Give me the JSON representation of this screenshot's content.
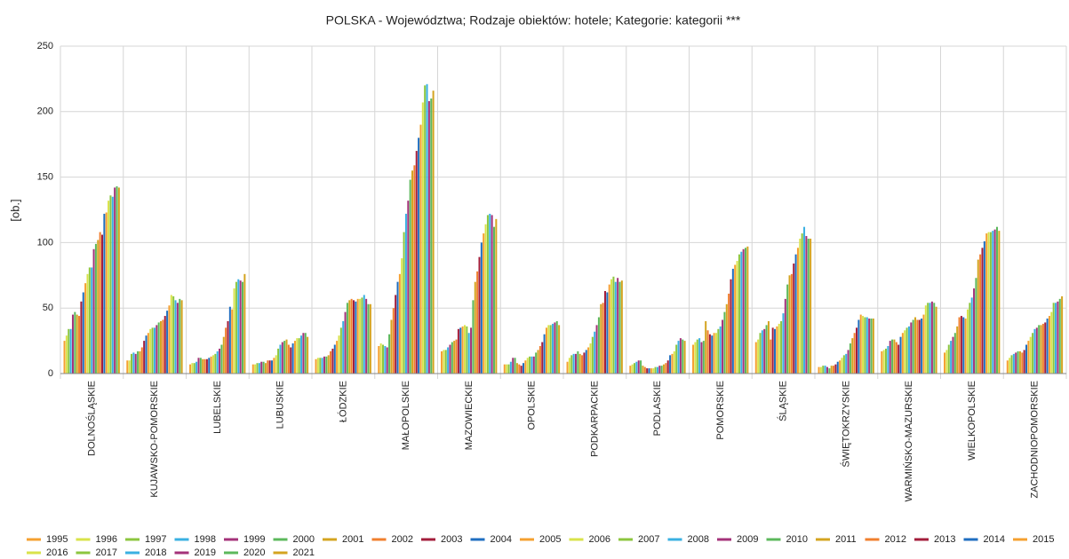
{
  "chart_data": {
    "type": "bar",
    "title": "POLSKA - Województwa; Rodzaje obiektów: hotele; Kategorie: kategorii ***",
    "y_label": "[ob.]",
    "categories": [
      "DOLNOŚLĄSKIE",
      "KUJAWSKO-POMORSKIE",
      "LUBELSKIE",
      "LUBUSKIE",
      "ŁÓDZKIE",
      "MAŁOPOLSKIE",
      "MAZOWIECKIE",
      "OPOLSKIE",
      "PODKARPACKIE",
      "PODLASKIE",
      "POMORSKIE",
      "ŚLĄSKIE",
      "ŚWIĘTOKRZYSKIE",
      "WARMIŃSKO-MAZURSKIE",
      "WIELKOPOLSKIE",
      "ZACHODNIOPOMORSKIE"
    ],
    "ylim": [
      0,
      250
    ],
    "yticks": [
      0,
      50,
      100,
      150,
      200,
      250
    ],
    "grid": true,
    "series": [
      {
        "name": "1995",
        "color": "#f5a030",
        "values": [
          25,
          10,
          7,
          7,
          11,
          21,
          17,
          7,
          9,
          6,
          22,
          24,
          5,
          17,
          16,
          10
        ]
      },
      {
        "name": "1996",
        "color": "#d9e34a",
        "values": [
          29,
          10,
          8,
          7,
          12,
          23,
          18,
          7,
          12,
          7,
          24,
          26,
          5,
          18,
          18,
          12
        ]
      },
      {
        "name": "1997",
        "color": "#8cc63f",
        "values": [
          34,
          15,
          8,
          8,
          12,
          22,
          18,
          7,
          14,
          8,
          26,
          31,
          6,
          19,
          22,
          14
        ]
      },
      {
        "name": "1998",
        "color": "#3ab0e2",
        "values": [
          34,
          16,
          9,
          8,
          12,
          21,
          20,
          9,
          15,
          9,
          27,
          33,
          6,
          21,
          25,
          15
        ]
      },
      {
        "name": "1999",
        "color": "#a4327a",
        "values": [
          45,
          15,
          12,
          9,
          13,
          20,
          22,
          12,
          15,
          10,
          24,
          34,
          5,
          25,
          28,
          16
        ]
      },
      {
        "name": "2000",
        "color": "#5cb85c",
        "values": [
          47,
          17,
          12,
          9,
          13,
          30,
          24,
          12,
          17,
          10,
          25,
          37,
          4,
          26,
          31,
          17
        ]
      },
      {
        "name": "2001",
        "color": "#d4a420",
        "values": [
          45,
          17,
          11,
          8,
          14,
          41,
          25,
          8,
          15,
          6,
          40,
          40,
          6,
          26,
          36,
          17
        ]
      },
      {
        "name": "2002",
        "color": "#f07f2e",
        "values": [
          44,
          20,
          11,
          10,
          17,
          50,
          26,
          7,
          14,
          5,
          33,
          26,
          6,
          24,
          43,
          16
        ]
      },
      {
        "name": "2003",
        "color": "#a31d3b",
        "values": [
          55,
          25,
          11,
          10,
          19,
          60,
          34,
          6,
          16,
          4,
          30,
          35,
          7,
          22,
          44,
          18
        ]
      },
      {
        "name": "2004",
        "color": "#1f6ec0",
        "values": [
          62,
          29,
          12,
          10,
          22,
          70,
          35,
          8,
          18,
          4,
          29,
          34,
          9,
          28,
          43,
          22
        ]
      },
      {
        "name": "2005",
        "color": "#f5a030",
        "values": [
          69,
          31,
          13,
          12,
          25,
          76,
          36,
          10,
          20,
          4,
          31,
          36,
          10,
          31,
          42,
          25
        ]
      },
      {
        "name": "2006",
        "color": "#d9e34a",
        "values": [
          76,
          34,
          14,
          14,
          29,
          88,
          37,
          12,
          23,
          4,
          31,
          38,
          12,
          33,
          49,
          28
        ]
      },
      {
        "name": "2007",
        "color": "#8cc63f",
        "values": [
          81,
          35,
          15,
          19,
          35,
          108,
          36,
          13,
          28,
          5,
          34,
          40,
          14,
          35,
          54,
          31
        ]
      },
      {
        "name": "2008",
        "color": "#3ab0e2",
        "values": [
          81,
          35,
          17,
          22,
          40,
          122,
          31,
          13,
          32,
          5,
          36,
          46,
          15,
          36,
          58,
          34
        ]
      },
      {
        "name": "2009",
        "color": "#a4327a",
        "values": [
          95,
          37,
          19,
          24,
          47,
          132,
          35,
          13,
          37,
          6,
          41,
          57,
          18,
          39,
          65,
          35
        ]
      },
      {
        "name": "2010",
        "color": "#5cb85c",
        "values": [
          99,
          39,
          22,
          25,
          54,
          148,
          56,
          16,
          43,
          6,
          47,
          68,
          23,
          41,
          73,
          37
        ]
      },
      {
        "name": "2011",
        "color": "#d4a420",
        "values": [
          102,
          40,
          28,
          26,
          56,
          155,
          70,
          18,
          53,
          7,
          53,
          75,
          27,
          43,
          87,
          37
        ]
      },
      {
        "name": "2012",
        "color": "#f07f2e",
        "values": [
          108,
          41,
          35,
          22,
          57,
          159,
          78,
          21,
          54,
          8,
          61,
          76,
          31,
          41,
          91,
          38
        ]
      },
      {
        "name": "2013",
        "color": "#a31d3b",
        "values": [
          106,
          44,
          40,
          20,
          56,
          170,
          89,
          24,
          63,
          10,
          72,
          84,
          35,
          41,
          96,
          39
        ]
      },
      {
        "name": "2014",
        "color": "#1f6ec0",
        "values": [
          122,
          48,
          51,
          23,
          55,
          180,
          100,
          30,
          62,
          14,
          80,
          91,
          41,
          42,
          101,
          42
        ]
      },
      {
        "name": "2015",
        "color": "#f5a030",
        "values": [
          123,
          52,
          49,
          25,
          57,
          190,
          107,
          35,
          68,
          15,
          83,
          96,
          45,
          45,
          107,
          44
        ]
      },
      {
        "name": "2016",
        "color": "#d9e34a",
        "values": [
          132,
          60,
          65,
          27,
          57,
          207,
          114,
          37,
          72,
          17,
          86,
          103,
          44,
          52,
          108,
          47
        ]
      },
      {
        "name": "2017",
        "color": "#8cc63f",
        "values": [
          136,
          59,
          70,
          27,
          58,
          220,
          121,
          37,
          74,
          22,
          91,
          107,
          43,
          54,
          108,
          54
        ]
      },
      {
        "name": "2018",
        "color": "#3ab0e2",
        "values": [
          135,
          56,
          72,
          29,
          60,
          221,
          122,
          38,
          70,
          25,
          93,
          112,
          43,
          54,
          109,
          54
        ]
      },
      {
        "name": "2019",
        "color": "#a4327a",
        "values": [
          142,
          54,
          71,
          31,
          57,
          208,
          121,
          39,
          73,
          27,
          95,
          105,
          42,
          55,
          110,
          55
        ]
      },
      {
        "name": "2020",
        "color": "#5cb85c",
        "values": [
          143,
          57,
          70,
          31,
          53,
          210,
          112,
          40,
          70,
          26,
          96,
          103,
          42,
          54,
          112,
          57
        ]
      },
      {
        "name": "2021",
        "color": "#d4a420",
        "values": [
          142,
          56,
          76,
          28,
          53,
          216,
          118,
          37,
          71,
          25,
          97,
          103,
          42,
          51,
          109,
          59
        ]
      }
    ]
  }
}
